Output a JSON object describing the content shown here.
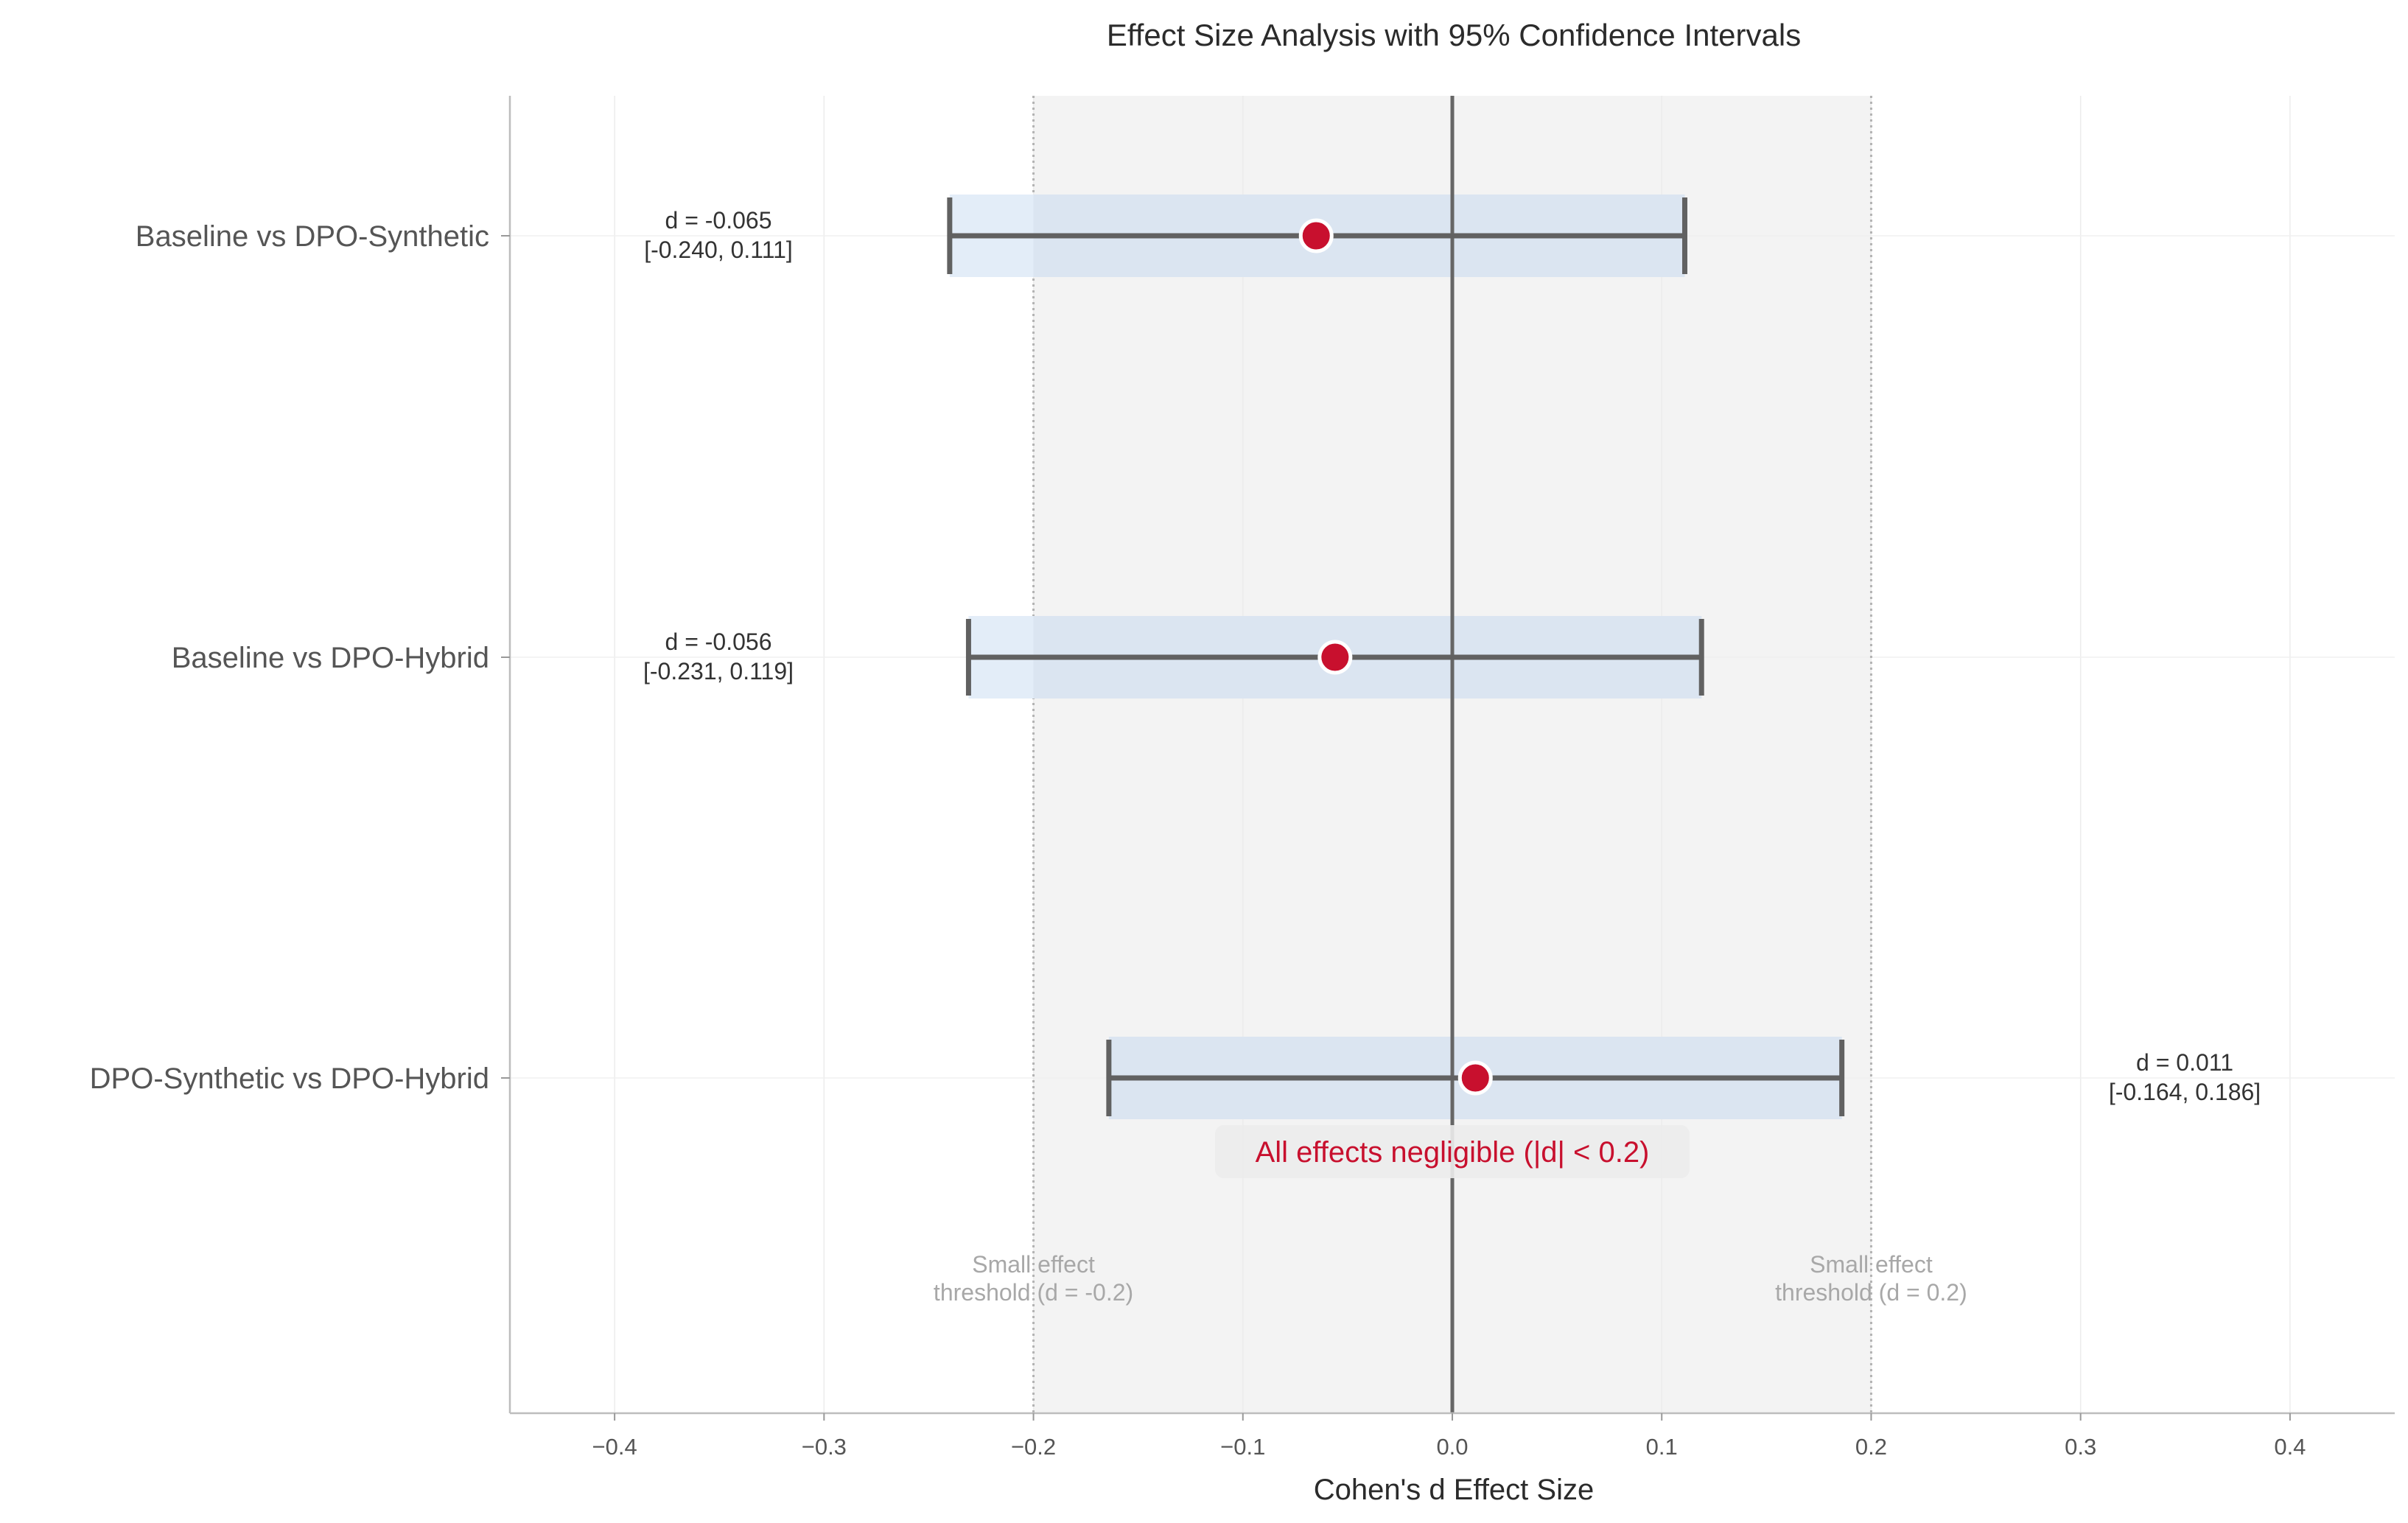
{
  "chart_data": {
    "type": "forest",
    "title": "Effect Size Analysis with 95% Confidence Intervals",
    "xlabel": "Cohen's d Effect Size",
    "xlim": [
      -0.45,
      0.45
    ],
    "x_ticks": [
      -0.4,
      -0.3,
      -0.2,
      -0.1,
      0.0,
      0.1,
      0.2,
      0.3,
      0.4
    ],
    "x_tick_labels": [
      "−0.4",
      "−0.3",
      "−0.2",
      "−0.1",
      "0.0",
      "0.1",
      "0.2",
      "0.3",
      "0.4"
    ],
    "grid": true,
    "negligible_band": [
      -0.2,
      0.2
    ],
    "comparisons": [
      {
        "label": "Baseline vs DPO-Synthetic",
        "d": -0.065,
        "ci_low": -0.24,
        "ci_high": 0.111,
        "annotation_line1": "d = -0.065",
        "annotation_line2": "[-0.240, 0.111]",
        "annotation_side": "left"
      },
      {
        "label": "Baseline vs DPO-Hybrid",
        "d": -0.056,
        "ci_low": -0.231,
        "ci_high": 0.119,
        "annotation_line1": "d = -0.056",
        "annotation_line2": "[-0.231, 0.119]",
        "annotation_side": "left"
      },
      {
        "label": "DPO-Synthetic vs DPO-Hybrid",
        "d": 0.011,
        "ci_low": -0.164,
        "ci_high": 0.186,
        "annotation_line1": "d = 0.011",
        "annotation_line2": "[-0.164, 0.186]",
        "annotation_side": "right"
      }
    ],
    "thresholds": [
      {
        "value": -0.2,
        "line1": "Small effect",
        "line2": "threshold (d = -0.2)"
      },
      {
        "value": 0.2,
        "line1": "Small effect",
        "line2": "threshold (d = 0.2)"
      }
    ],
    "note": "All effects negligible (|d| < 0.2)",
    "colors": {
      "point": "#c8102e",
      "errorbar": "#616161",
      "ci_band": "#dbe5f1",
      "ci_band_outside": "#e3edf8",
      "negligible_region": "#f3f3f3",
      "note_text": "#c8102e",
      "note_box": "#ececec"
    }
  }
}
